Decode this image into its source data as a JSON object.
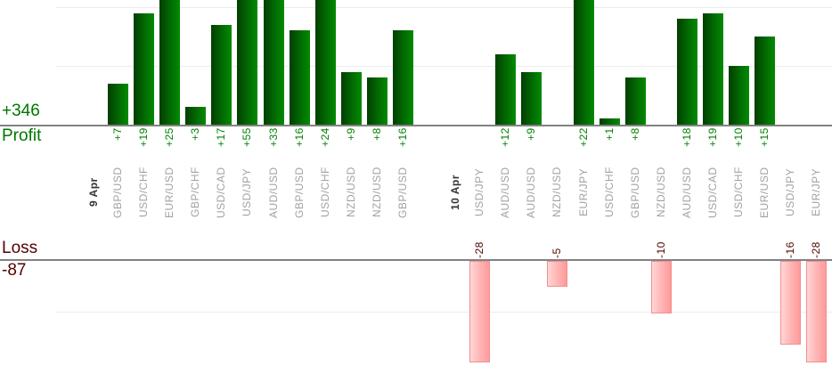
{
  "chart_data": {
    "type": "bar",
    "title": "",
    "legend_position": "none",
    "grid": true,
    "axes": {
      "profit": {
        "label": "Profit",
        "total_label": "+346",
        "gridlines": [
          10,
          20
        ],
        "visible_range": [
          0,
          21.5
        ]
      },
      "loss": {
        "label": "Loss",
        "total_label": "-87",
        "gridlines": [
          -10
        ],
        "visible_range": [
          0,
          -19.6
        ]
      }
    },
    "colors": {
      "profit_bar_gradient": [
        "#023e02",
        "#026b02",
        "#028a02"
      ],
      "loss_bar_gradient": [
        "#ffd6d6",
        "#ffb2b2",
        "#ff9b9b"
      ],
      "loss_bar_border": "#f09090",
      "profit_text": "#008000",
      "loss_text": "#550000",
      "pair_label_text": "#a2a2a2",
      "date_label_text": "#333333",
      "axis_line": "#828282",
      "gridline": "#ececec"
    },
    "groups": [
      {
        "date": "9 Apr",
        "trades": [
          {
            "pair": "GBP/USD",
            "value": 7,
            "label": "+7"
          },
          {
            "pair": "USD/CHF",
            "value": 19,
            "label": "+19"
          },
          {
            "pair": "EUR/USD",
            "value": 25,
            "label": "+25"
          },
          {
            "pair": "GBP/CHF",
            "value": 3,
            "label": "+3"
          },
          {
            "pair": "USD/CAD",
            "value": 17,
            "label": "+17"
          },
          {
            "pair": "USD/JPY",
            "value": 55,
            "label": "+55"
          },
          {
            "pair": "AUD/USD",
            "value": 33,
            "label": "+33"
          },
          {
            "pair": "GBP/USD",
            "value": 16,
            "label": "+16"
          },
          {
            "pair": "USD/CHF",
            "value": 24,
            "label": "+24"
          },
          {
            "pair": "NZD/USD",
            "value": 9,
            "label": "+9"
          },
          {
            "pair": "NZD/USD",
            "value": 8,
            "label": "+8"
          },
          {
            "pair": "GBP/USD",
            "value": 16,
            "label": "+16"
          }
        ]
      },
      {
        "date": "10 Apr",
        "trades": [
          {
            "pair": "USD/JPY",
            "value": -28,
            "label": "-28"
          },
          {
            "pair": "AUD/USD",
            "value": 12,
            "label": "+12"
          },
          {
            "pair": "AUD/USD",
            "value": 9,
            "label": "+9"
          },
          {
            "pair": "NZD/USD",
            "value": -5,
            "label": "-5"
          },
          {
            "pair": "EUR/JPY",
            "value": 22,
            "label": "+22"
          },
          {
            "pair": "USD/CHF",
            "value": 1,
            "label": "+1"
          },
          {
            "pair": "GBP/USD",
            "value": 8,
            "label": "+8"
          },
          {
            "pair": "NZD/USD",
            "value": -10,
            "label": "-10"
          },
          {
            "pair": "AUD/USD",
            "value": 18,
            "label": "+18"
          },
          {
            "pair": "USD/CAD",
            "value": 19,
            "label": "+19"
          },
          {
            "pair": "USD/CHF",
            "value": 10,
            "label": "+10"
          },
          {
            "pair": "EUR/USD",
            "value": 15,
            "label": "+15"
          },
          {
            "pair": "USD/JPY",
            "value": -16,
            "label": "-16"
          },
          {
            "pair": "EUR/JPY",
            "value": -28,
            "label": "-28"
          }
        ]
      }
    ]
  }
}
